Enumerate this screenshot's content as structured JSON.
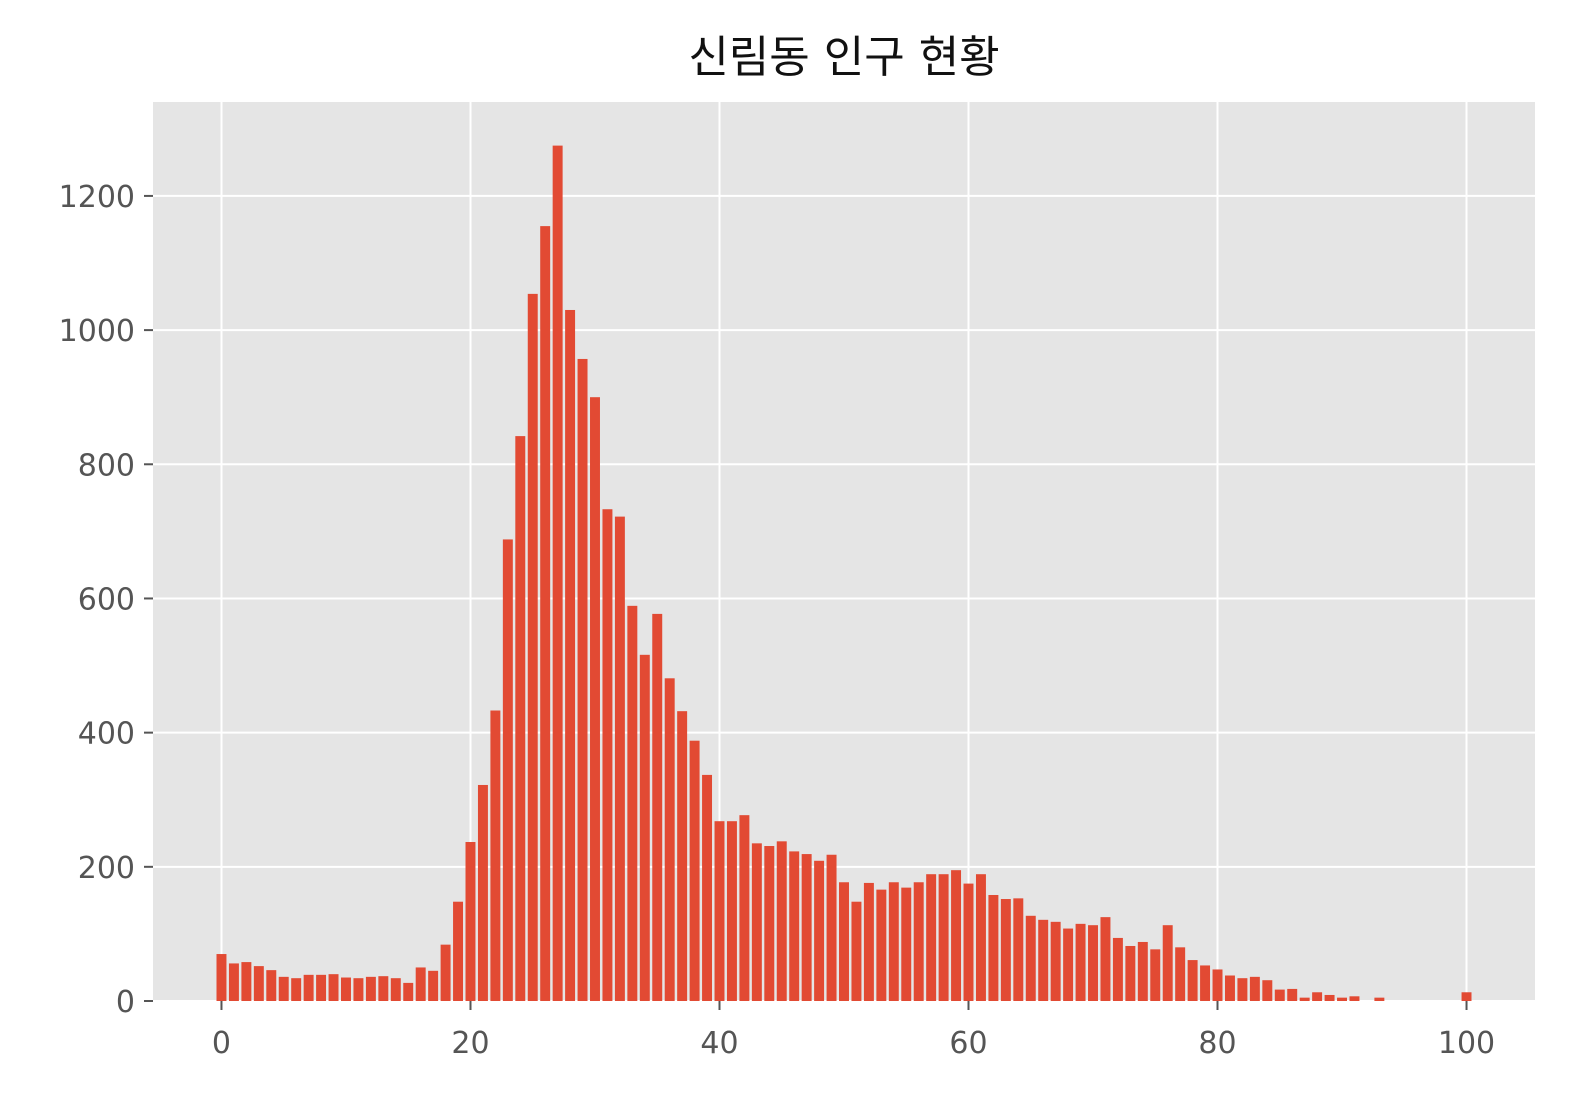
{
  "chart_data": {
    "type": "bar",
    "title": "신림동 인구 현황",
    "xlabel": "",
    "ylabel": "",
    "x": [
      0,
      1,
      2,
      3,
      4,
      5,
      6,
      7,
      8,
      9,
      10,
      11,
      12,
      13,
      14,
      15,
      16,
      17,
      18,
      19,
      20,
      21,
      22,
      23,
      24,
      25,
      26,
      27,
      28,
      29,
      30,
      31,
      32,
      33,
      34,
      35,
      36,
      37,
      38,
      39,
      40,
      41,
      42,
      43,
      44,
      45,
      46,
      47,
      48,
      49,
      50,
      51,
      52,
      53,
      54,
      55,
      56,
      57,
      58,
      59,
      60,
      61,
      62,
      63,
      64,
      65,
      66,
      67,
      68,
      69,
      70,
      71,
      72,
      73,
      74,
      75,
      76,
      77,
      78,
      79,
      80,
      81,
      82,
      83,
      84,
      85,
      86,
      87,
      88,
      89,
      90,
      91,
      92,
      93,
      94,
      95,
      96,
      97,
      98,
      99,
      100
    ],
    "values": [
      70,
      56,
      58,
      52,
      46,
      36,
      34,
      39,
      39,
      40,
      35,
      34,
      36,
      37,
      34,
      27,
      50,
      45,
      84,
      148,
      237,
      322,
      433,
      688,
      842,
      1054,
      1155,
      1275,
      1030,
      957,
      900,
      733,
      722,
      589,
      516,
      577,
      481,
      432,
      388,
      337,
      268,
      268,
      277,
      235,
      231,
      238,
      223,
      219,
      209,
      218,
      177,
      148,
      176,
      166,
      177,
      169,
      177,
      189,
      189,
      195,
      175,
      189,
      158,
      152,
      153,
      127,
      121,
      118,
      108,
      115,
      113,
      125,
      94,
      82,
      88,
      77,
      113,
      80,
      61,
      53,
      47,
      38,
      34,
      36,
      31,
      17,
      18,
      5,
      13,
      9,
      5,
      7,
      0,
      5,
      0,
      0,
      0,
      0,
      0,
      0,
      13
    ],
    "xlim": [
      -5.5,
      105.5
    ],
    "ylim": [
      0,
      1340
    ],
    "xticks": [
      0,
      20,
      40,
      60,
      80,
      100
    ],
    "yticks": [
      0,
      200,
      400,
      600,
      800,
      1000,
      1200
    ],
    "grid": true,
    "legend": "none",
    "bar_color": "#e24a33",
    "background_color": "#e5e5e5",
    "grid_color": "#ffffff"
  }
}
